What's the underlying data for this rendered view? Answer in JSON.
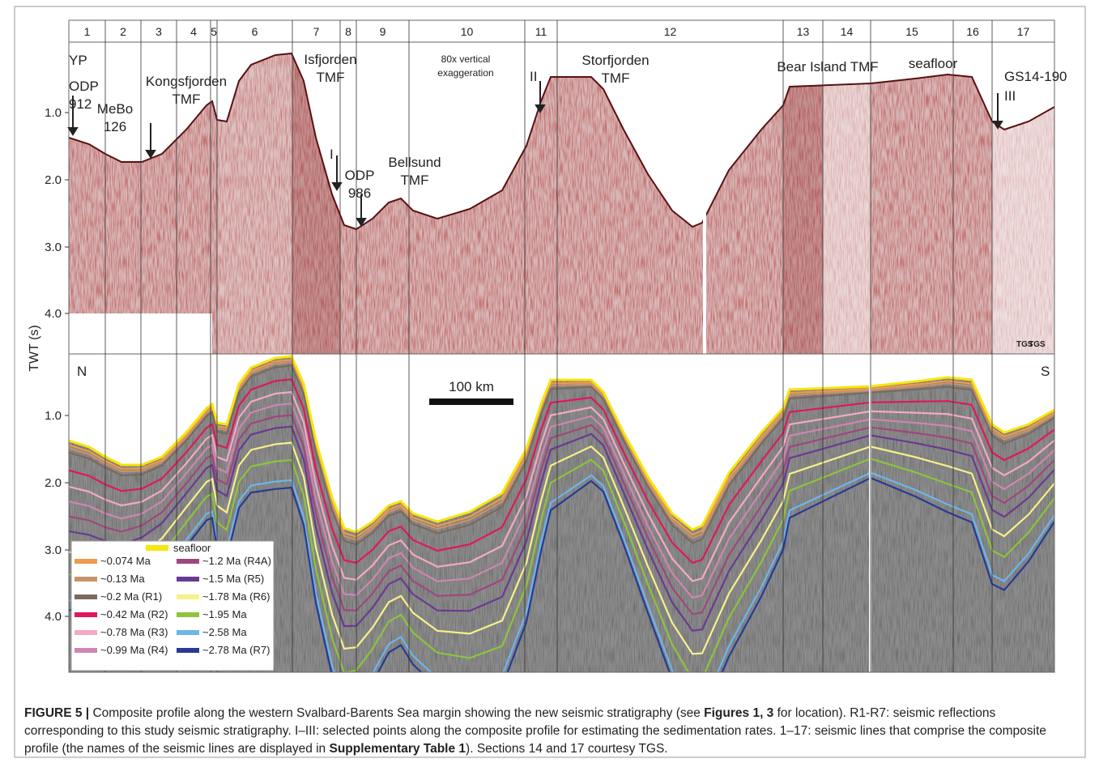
{
  "sections": [
    "1",
    "2",
    "3",
    "4",
    "5",
    "6",
    "7",
    "8",
    "9",
    "10",
    "11",
    "12",
    "13",
    "14",
    "15",
    "16",
    "17"
  ],
  "y_axis_label": "TWT (s)",
  "top_panel": {
    "y_ticks": [
      "1.0",
      "2.0",
      "3.0",
      "4.0"
    ],
    "annotations": [
      [
        "YP"
      ],
      [
        "ODP",
        "912"
      ],
      [
        "MeBo",
        "126"
      ],
      [
        "Kongsfjorden",
        "TMF"
      ],
      [
        "Isfjorden",
        "TMF"
      ],
      [
        "I"
      ],
      [
        "ODP",
        "986"
      ],
      [
        "Bellsund",
        "TMF"
      ],
      [
        "80x vertical",
        "exaggeration"
      ],
      [
        "II"
      ],
      [
        "Storfjorden",
        "TMF"
      ],
      [
        "Bear Island TMF"
      ],
      [
        "seafloor"
      ],
      [
        "GS14-190"
      ],
      [
        "III"
      ],
      [
        "TGS"
      ],
      [
        "TGS"
      ]
    ]
  },
  "bottom_panel": {
    "y_ticks": [
      "1.0",
      "2.0",
      "3.0",
      "4.0"
    ],
    "left_label": "N",
    "right_label": "S",
    "scale_bar": "100 km"
  },
  "legend": {
    "seafloor": {
      "label": "seafloor",
      "color": "#f6e60c"
    },
    "items": [
      {
        "label": "~0.074 Ma",
        "color": "#f09a4c"
      },
      {
        "label": "~0.13 Ma",
        "color": "#c8936a"
      },
      {
        "label": "~0.2 Ma (R1)",
        "color": "#7a6a5e"
      },
      {
        "label": "~0.42 Ma (R2)",
        "color": "#e0185a"
      },
      {
        "label": "~0.78 Ma (R3)",
        "color": "#f4a9c4"
      },
      {
        "label": "~0.99 Ma (R4)",
        "color": "#cf86b2"
      },
      {
        "label": "~1.2 Ma (R4A)",
        "color": "#a0467e"
      },
      {
        "label": "~1.5 Ma (R5)",
        "color": "#693a92"
      },
      {
        "label": "~1.78 Ma (R6)",
        "color": "#f8f08a"
      },
      {
        "label": "~1.95 Ma",
        "color": "#8cc43c"
      },
      {
        "label": "~2.58 Ma",
        "color": "#6cb6ea"
      },
      {
        "label": "~2.78 Ma (R7)",
        "color": "#283a94"
      }
    ]
  },
  "caption": [
    {
      "text": "FIGURE 5 |",
      "bold": true
    },
    {
      "text": " Composite profile along the western Svalbard-Barents Sea margin showing the new seismic stratigraphy (see ",
      "bold": false
    },
    {
      "text": "Figures 1, 3",
      "bold": true
    },
    {
      "text": " for location). R1-R7: seismic reflections corresponding to this study seismic stratigraphy. I–III: selected points along the composite profile for estimating the sedimentation rates. 1–17: seismic lines that comprise the composite profile (the names of the seismic lines are displayed in ",
      "bold": false
    },
    {
      "text": "Supplementary Table 1",
      "bold": true
    },
    {
      "text": "). Sections 14 and 17 courtesy TGS.",
      "bold": false
    }
  ]
}
